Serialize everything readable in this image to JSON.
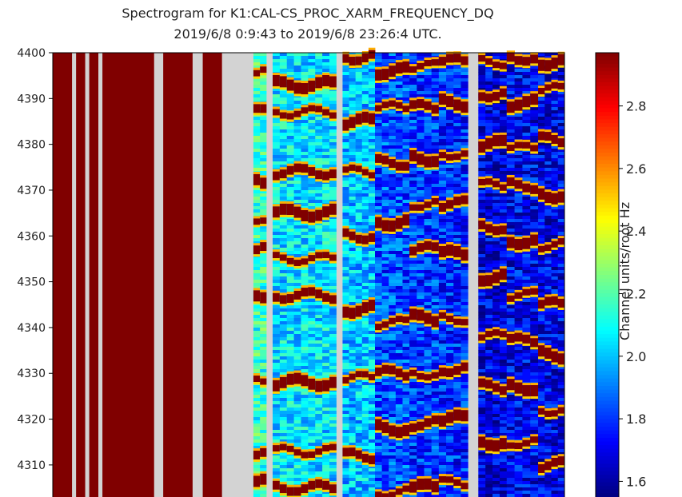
{
  "title": "Spectrogram for K1:CAL-CS_PROC_XARM_FREQUENCY_DQ",
  "subtitle": "2019/6/8 0:9:43  to  2019/6/8 23:26:4 UTC.",
  "chart_data": {
    "type": "heatmap",
    "title": "Spectrogram for K1:CAL-CS_PROC_XARM_FREQUENCY_DQ",
    "subtitle": "2019/6/8 0:9:43  to  2019/6/8 23:26:4 UTC.",
    "xlabel": "",
    "ylabel": "",
    "ylim": [
      4303,
      4400
    ],
    "yticks": [
      4310,
      4320,
      4330,
      4340,
      4350,
      4360,
      4370,
      4380,
      4390,
      4400
    ],
    "colormap": "jet",
    "colorbar": {
      "label": "Channel units/root Hz",
      "range": [
        1.55,
        2.97
      ],
      "ticks": [
        1.6,
        1.8,
        2.0,
        2.2,
        2.4,
        2.6,
        2.8
      ]
    },
    "missing_color": "#d3d3d3",
    "columns": [
      {
        "kind": "saturated",
        "span": 19
      },
      {
        "kind": "gap",
        "span": 4
      },
      {
        "kind": "saturated",
        "span": 9
      },
      {
        "kind": "gap",
        "span": 4
      },
      {
        "kind": "saturated",
        "span": 9
      },
      {
        "kind": "gap",
        "span": 4
      },
      {
        "kind": "saturated",
        "span": 51
      },
      {
        "kind": "gap",
        "span": 9
      },
      {
        "kind": "saturated",
        "span": 29
      },
      {
        "kind": "gap",
        "span": 10
      },
      {
        "kind": "saturated",
        "span": 19
      },
      {
        "kind": "gap",
        "span": 31
      },
      {
        "kind": "spectrum",
        "span": 13,
        "background": 2.15,
        "lines": [
          4396,
          4387,
          4372,
          4364,
          4357,
          4346,
          4329,
          4313,
          4306
        ]
      },
      {
        "kind": "gap",
        "span": 6
      },
      {
        "kind": "spectrum",
        "span": 63,
        "background": 2.05,
        "lines": [
          4393,
          4387,
          4374,
          4365,
          4355,
          4347,
          4328,
          4313,
          4305
        ]
      },
      {
        "kind": "gap",
        "span": 6
      },
      {
        "kind": "spectrum",
        "span": 32,
        "background": 2.0,
        "lines": [
          4399,
          4385,
          4374,
          4360,
          4344,
          4329,
          4312
        ]
      },
      {
        "kind": "spectrum",
        "span": 34,
        "background": 1.83,
        "lines": [
          4396,
          4388,
          4376,
          4363,
          4341,
          4330,
          4318,
          4304
        ]
      },
      {
        "kind": "spectrum",
        "span": 29,
        "background": 1.8,
        "lines": [
          4397,
          4388,
          4377,
          4367,
          4357,
          4342,
          4330,
          4319,
          4305
        ]
      },
      {
        "kind": "spectrum",
        "span": 29,
        "background": 1.78,
        "lines": [
          4398,
          4389,
          4378,
          4367,
          4356,
          4342,
          4331,
          4320,
          4306
        ]
      },
      {
        "kind": "gap",
        "span": 10
      },
      {
        "kind": "spectrum",
        "span": 28,
        "background": 1.68,
        "lines": [
          4398,
          4391,
          4380,
          4371,
          4362,
          4351,
          4338,
          4327,
          4315
        ]
      },
      {
        "kind": "spectrum",
        "span": 31,
        "background": 1.72,
        "lines": [
          4399,
          4389,
          4379,
          4371,
          4359,
          4347,
          4337,
          4327,
          4315
        ]
      },
      {
        "kind": "spectrum",
        "span": 26,
        "background": 1.7,
        "lines": [
          4398,
          4392,
          4381,
          4369,
          4358,
          4345,
          4334,
          4322,
          4310
        ]
      }
    ]
  }
}
